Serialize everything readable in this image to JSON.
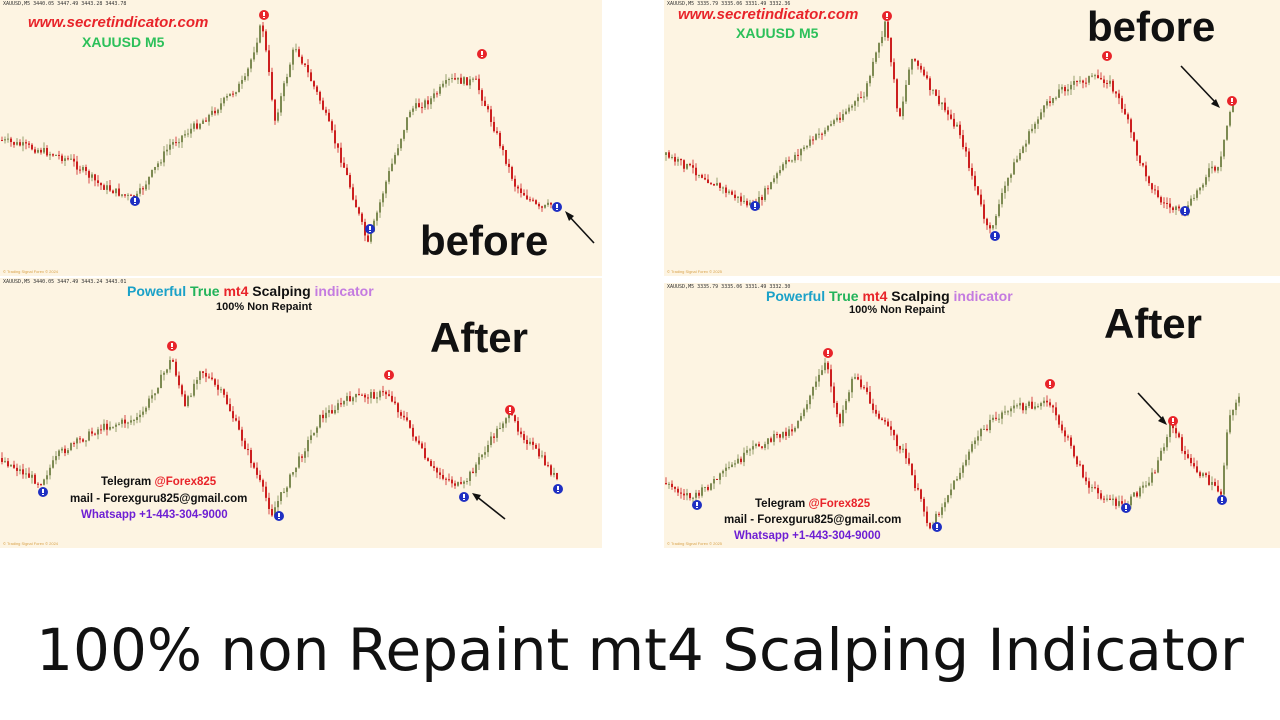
{
  "panels": [
    {
      "id": "top-left",
      "header": "XAUUSD,M5 3440.05 3447.49 3443.28 3443.78",
      "copyright": "© Trading Signal Forex © 2024",
      "site": "www.secretindicator.com",
      "symbol": "XAUUSD M5",
      "big_label": "before"
    },
    {
      "id": "bottom-left",
      "header": "XAUUSD,M5 3440.05 3447.49 3443.24 3443.01",
      "copyright": "© Trading Signal Forex © 2024",
      "big_label": "After",
      "promo": {
        "w1": "Powerful",
        "w2": "True",
        "w3": "mt4",
        "w4": "Scalping",
        "w5": "indicator"
      },
      "sub": "100% Non Repaint",
      "telegram_label": "Telegram",
      "telegram_handle": "@Forex825",
      "mail": "mail - Forexguru825@gmail.com",
      "whatsapp": "Whatsapp +1-443-304-9000"
    },
    {
      "id": "top-right",
      "header": "XAUUSD,M5 3335.79 3335.06 3331.49 3332.36",
      "copyright": "© Trading Signal Forex © 2025",
      "site": "www.secretindicator.com",
      "symbol": "XAUUSD M5",
      "big_label": "before"
    },
    {
      "id": "bottom-right",
      "header": "XAUUSD,M5 3335.79 3335.06 3331.49 3332.30",
      "copyright": "© Trading Signal Forex © 2025",
      "big_label": "After",
      "promo": {
        "w1": "Powerful",
        "w2": "True",
        "w3": "mt4",
        "w4": "Scalping",
        "w5": "indicator"
      },
      "sub": "100% Non Repaint",
      "telegram_label": "Telegram",
      "telegram_handle": "@Forex825",
      "mail": "mail - Forexguru825@gmail.com",
      "whatsapp": "Whatsapp +1-443-304-9000"
    }
  ],
  "title": "100% non Repaint mt4 Scalping Indicator",
  "colors": {
    "chart_bg": "#fdf4e2",
    "bull_candle": "#7d8a52",
    "bear_candle": "#cc1f1f",
    "sell_signal": "#e8242a",
    "buy_signal": "#1f2fc2",
    "site_text": "#e8242a",
    "symbol_text": "#2cc05a",
    "promo_powerful": "#1aa1c8",
    "promo_true": "#22b35a",
    "promo_mt4": "#e8242a",
    "promo_scalping": "#111111",
    "promo_indicator": "#c47be0",
    "whatsapp": "#6e1fd4"
  },
  "icons": {
    "sell_signal": "exclamation-circle-red-icon",
    "buy_signal": "exclamation-circle-blue-icon",
    "arrow": "pointer-arrow-icon"
  }
}
